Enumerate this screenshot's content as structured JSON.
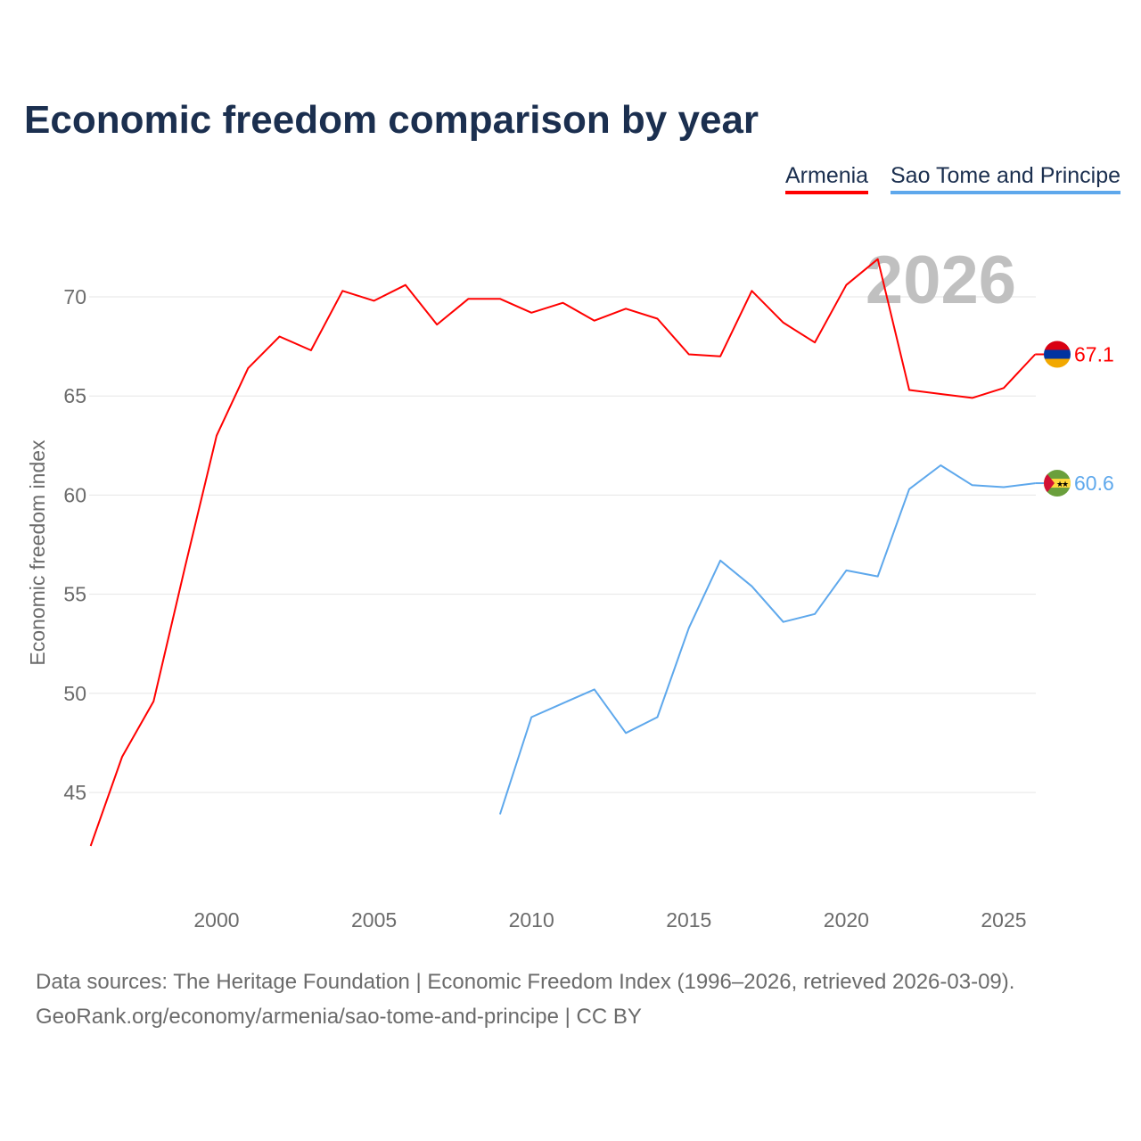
{
  "chart_data": {
    "type": "line",
    "title": "Economic freedom comparison by year",
    "xlabel": "",
    "ylabel": "Economic freedom index",
    "xlim": [
      1996,
      2026
    ],
    "ylim": [
      41,
      73
    ],
    "xticks": [
      2000,
      2005,
      2010,
      2015,
      2020,
      2025
    ],
    "yticks": [
      45,
      50,
      55,
      60,
      65,
      70
    ],
    "grid": true,
    "legend_position": "top-right",
    "year_label": "2026",
    "series": [
      {
        "name": "Armenia",
        "color": "#ff0000",
        "end_label": "67.1",
        "x": [
          1996,
          1997,
          1998,
          1999,
          2000,
          2001,
          2002,
          2003,
          2004,
          2005,
          2006,
          2007,
          2008,
          2009,
          2010,
          2011,
          2012,
          2013,
          2014,
          2015,
          2016,
          2017,
          2018,
          2019,
          2020,
          2021,
          2022,
          2023,
          2024,
          2025,
          2026
        ],
        "values": [
          42.3,
          46.8,
          49.6,
          56.4,
          63.0,
          66.4,
          68.0,
          67.3,
          70.3,
          69.8,
          70.6,
          68.6,
          69.9,
          69.9,
          69.2,
          69.7,
          68.8,
          69.4,
          68.9,
          67.1,
          67.0,
          70.3,
          68.7,
          67.7,
          70.6,
          71.9,
          65.3,
          65.1,
          64.9,
          65.4,
          67.1
        ]
      },
      {
        "name": "Sao Tome and Principe",
        "color": "#5ea8ec",
        "end_label": "60.6",
        "x": [
          2009,
          2010,
          2011,
          2012,
          2013,
          2014,
          2015,
          2016,
          2017,
          2018,
          2019,
          2020,
          2021,
          2022,
          2023,
          2024,
          2025,
          2026
        ],
        "values": [
          43.9,
          48.8,
          49.5,
          50.2,
          48.0,
          48.8,
          53.3,
          56.7,
          55.4,
          53.6,
          54.0,
          56.2,
          55.9,
          60.3,
          61.5,
          60.5,
          60.4,
          60.6
        ]
      }
    ]
  },
  "footer": {
    "line1": "Data sources: The Heritage Foundation | Economic Freedom Index (1996–2026, retrieved 2026-03-09).",
    "line2": "GeoRank.org/economy/armenia/sao-tome-and-principe | CC BY"
  }
}
